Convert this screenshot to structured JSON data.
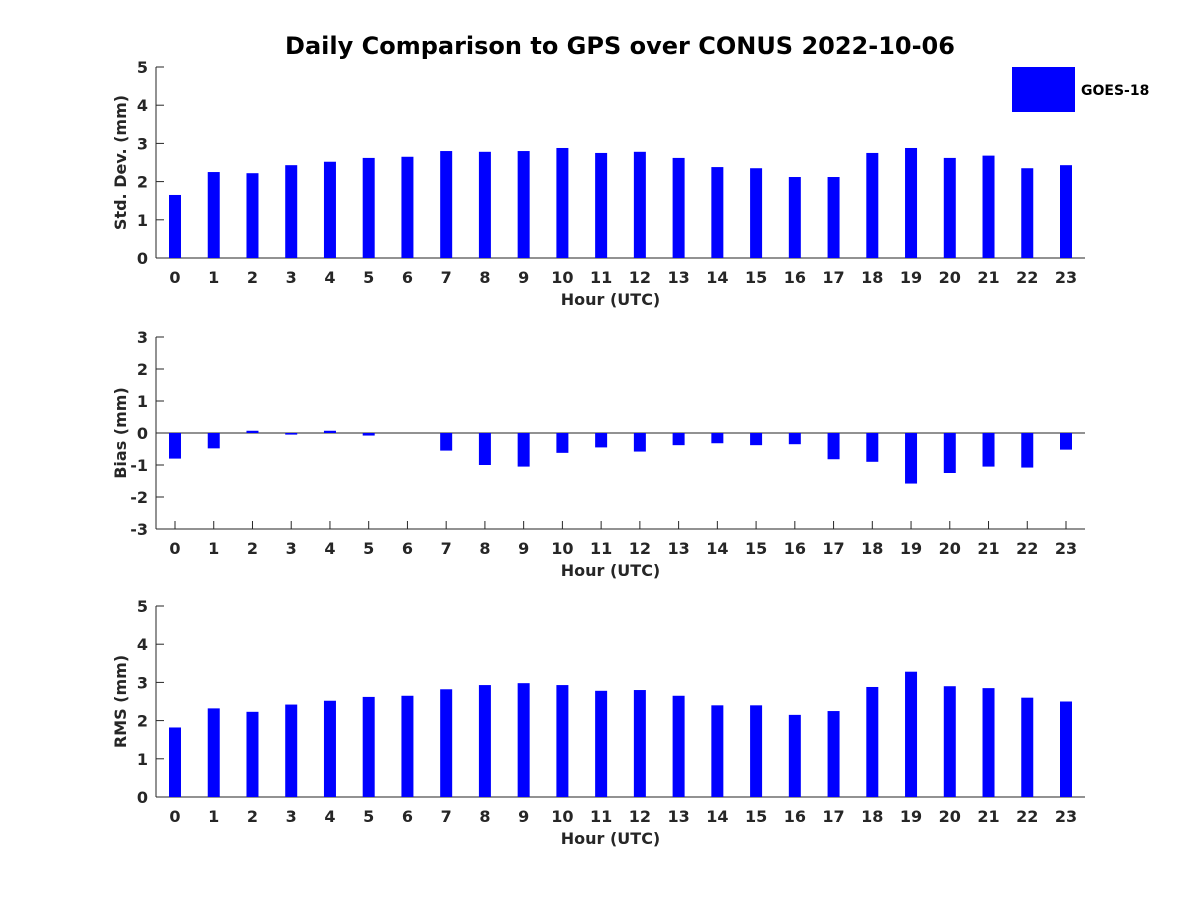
{
  "figure": {
    "title": "Daily Comparison to GPS over CONUS 2022-10-06",
    "bar_color": "#0000ff",
    "axis_color": "#262626"
  },
  "legend": {
    "label": "GOES-18",
    "placement": "top-right"
  },
  "chart_data": [
    {
      "type": "bar",
      "name": "std-dev",
      "title": "Daily Comparison to GPS over CONUS 2022-10-06",
      "xlabel": "Hour (UTC)",
      "ylabel": "Std. Dev. (mm)",
      "ylim": [
        0,
        5
      ],
      "yticks": [
        0,
        1,
        2,
        3,
        4,
        5
      ],
      "categories": [
        "0",
        "1",
        "2",
        "3",
        "4",
        "5",
        "6",
        "7",
        "8",
        "9",
        "10",
        "11",
        "12",
        "13",
        "14",
        "15",
        "16",
        "17",
        "18",
        "19",
        "20",
        "21",
        "22",
        "23"
      ],
      "series": [
        {
          "name": "GOES-18",
          "values": [
            1.65,
            2.25,
            2.22,
            2.43,
            2.52,
            2.62,
            2.65,
            2.8,
            2.78,
            2.8,
            2.88,
            2.75,
            2.78,
            2.62,
            2.38,
            2.35,
            2.12,
            2.12,
            2.75,
            2.88,
            2.62,
            2.68,
            2.35,
            2.43
          ]
        }
      ]
    },
    {
      "type": "bar",
      "name": "bias",
      "xlabel": "Hour (UTC)",
      "ylabel": "Bias (mm)",
      "ylim": [
        -3,
        3
      ],
      "yticks": [
        -3,
        -2,
        -1,
        0,
        1,
        2,
        3
      ],
      "categories": [
        "0",
        "1",
        "2",
        "3",
        "4",
        "5",
        "6",
        "7",
        "8",
        "9",
        "10",
        "11",
        "12",
        "13",
        "14",
        "15",
        "16",
        "17",
        "18",
        "19",
        "20",
        "21",
        "22",
        "23"
      ],
      "series": [
        {
          "name": "GOES-18",
          "values": [
            -0.8,
            -0.48,
            0.07,
            -0.05,
            0.07,
            -0.08,
            0.0,
            -0.55,
            -1.0,
            -1.05,
            -0.62,
            -0.45,
            -0.58,
            -0.38,
            -0.32,
            -0.38,
            -0.35,
            -0.82,
            -0.9,
            -1.58,
            -1.25,
            -1.05,
            -1.08,
            -0.52
          ]
        }
      ]
    },
    {
      "type": "bar",
      "name": "rms",
      "xlabel": "Hour (UTC)",
      "ylabel": "RMS (mm)",
      "ylim": [
        0,
        5
      ],
      "yticks": [
        0,
        1,
        2,
        3,
        4,
        5
      ],
      "categories": [
        "0",
        "1",
        "2",
        "3",
        "4",
        "5",
        "6",
        "7",
        "8",
        "9",
        "10",
        "11",
        "12",
        "13",
        "14",
        "15",
        "16",
        "17",
        "18",
        "19",
        "20",
        "21",
        "22",
        "23"
      ],
      "series": [
        {
          "name": "GOES-18",
          "values": [
            1.82,
            2.32,
            2.23,
            2.42,
            2.52,
            2.62,
            2.65,
            2.82,
            2.93,
            2.98,
            2.93,
            2.78,
            2.8,
            2.65,
            2.4,
            2.4,
            2.15,
            2.25,
            2.88,
            3.28,
            2.9,
            2.85,
            2.6,
            2.5
          ]
        }
      ]
    }
  ]
}
